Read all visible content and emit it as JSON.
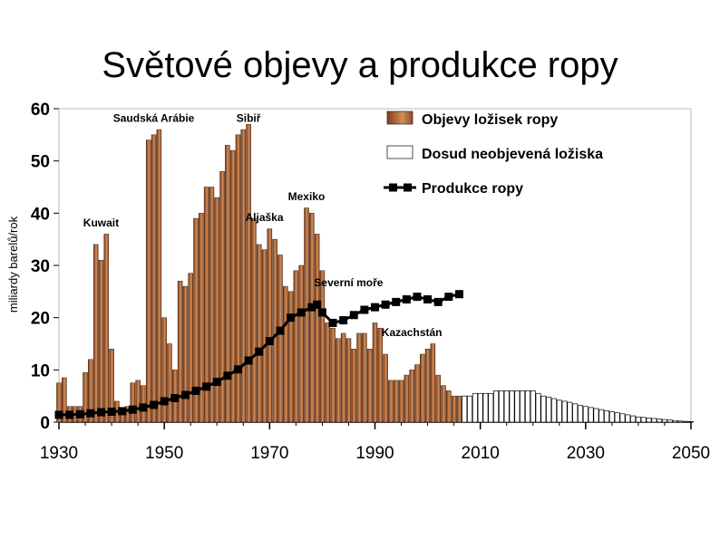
{
  "title": "Světové objevy a produkce ropy",
  "chart_data": {
    "type": "bar",
    "ylabel": "miliardy barelů/rok",
    "xlabel": "",
    "ylim": [
      0,
      60
    ],
    "xlim": [
      1930,
      2050
    ],
    "yticks": [
      0,
      10,
      20,
      30,
      40,
      50,
      60
    ],
    "xticks": [
      1930,
      1950,
      1970,
      1990,
      2010,
      2030,
      2050
    ],
    "grid": false,
    "legend_position": "top-right",
    "legend": [
      {
        "label": "Objevy ložisek ropy",
        "kind": "discoveries"
      },
      {
        "label": "Dosud neobjevená ložiska",
        "kind": "undiscovered"
      },
      {
        "label": "Produkce ropy",
        "kind": "production"
      }
    ],
    "annotations": [
      {
        "text": "Saudská Arábie",
        "x": 1948,
        "y": 57.5
      },
      {
        "text": "Sibiř",
        "x": 1966,
        "y": 57.5
      },
      {
        "text": "Kuwait",
        "x": 1938,
        "y": 37.5
      },
      {
        "text": "Mexiko",
        "x": 1977,
        "y": 42.5
      },
      {
        "text": "Aljaška",
        "x": 1969,
        "y": 38.5
      },
      {
        "text": "Severní moře",
        "x": 1985,
        "y": 26
      },
      {
        "text": "Kazachstán",
        "x": 1997,
        "y": 16.5
      }
    ],
    "series": [
      {
        "name": "Objevy ložisek ropy",
        "x": [
          1930,
          1931,
          1932,
          1933,
          1934,
          1935,
          1936,
          1937,
          1938,
          1939,
          1940,
          1941,
          1942,
          1943,
          1944,
          1945,
          1946,
          1947,
          1948,
          1949,
          1950,
          1951,
          1952,
          1953,
          1954,
          1955,
          1956,
          1957,
          1958,
          1959,
          1960,
          1961,
          1962,
          1963,
          1964,
          1965,
          1966,
          1967,
          1968,
          1969,
          1970,
          1971,
          1972,
          1973,
          1974,
          1975,
          1976,
          1977,
          1978,
          1979,
          1980,
          1981,
          1982,
          1983,
          1984,
          1985,
          1986,
          1987,
          1988,
          1989,
          1990,
          1991,
          1992,
          1993,
          1994,
          1995,
          1996,
          1997,
          1998,
          1999,
          2000,
          2001,
          2002,
          2003,
          2004,
          2005,
          2006
        ],
        "values": [
          7.5,
          8.5,
          3,
          3,
          3,
          9.5,
          12,
          34,
          31,
          36,
          14,
          4,
          2,
          3,
          7.5,
          8,
          7,
          54,
          55,
          56,
          20,
          15,
          10,
          27,
          26,
          28.5,
          39,
          40,
          45,
          45,
          43,
          48,
          53,
          52,
          55,
          56,
          57,
          39,
          34,
          33,
          37,
          35,
          32,
          26,
          25,
          29,
          30,
          41,
          40,
          36,
          29,
          19,
          18,
          16,
          17,
          16,
          14,
          17,
          17,
          14,
          19,
          18,
          13,
          8,
          8,
          8,
          9,
          10,
          11,
          13,
          14,
          15,
          9,
          7,
          6,
          5,
          5
        ]
      },
      {
        "name": "Dosud neobjevená ložiska",
        "x": [
          2007,
          2008,
          2009,
          2010,
          2011,
          2012,
          2013,
          2014,
          2015,
          2016,
          2017,
          2018,
          2019,
          2020,
          2021,
          2022,
          2023,
          2024,
          2025,
          2026,
          2027,
          2028,
          2029,
          2030,
          2031,
          2032,
          2033,
          2034,
          2035,
          2036,
          2037,
          2038,
          2039,
          2040,
          2041,
          2042,
          2043,
          2044,
          2045,
          2046,
          2047,
          2048,
          2049,
          2050
        ],
        "values": [
          5,
          5,
          5.5,
          5.5,
          5.5,
          5.5,
          6,
          6,
          6,
          6,
          6,
          6,
          6,
          6,
          5.5,
          5,
          4.8,
          4.5,
          4.2,
          4,
          3.8,
          3.5,
          3.2,
          3,
          2.8,
          2.6,
          2.4,
          2.2,
          2,
          1.8,
          1.6,
          1.4,
          1.2,
          1,
          0.9,
          0.8,
          0.7,
          0.6,
          0.5,
          0.4,
          0.3,
          0.2,
          0.15,
          0.1
        ]
      },
      {
        "name": "Produkce ropy",
        "x": [
          1930,
          1932,
          1934,
          1936,
          1938,
          1940,
          1942,
          1944,
          1946,
          1948,
          1950,
          1952,
          1954,
          1956,
          1958,
          1960,
          1962,
          1964,
          1966,
          1968,
          1970,
          1972,
          1974,
          1976,
          1978,
          1979,
          1980,
          1982,
          1984,
          1986,
          1988,
          1990,
          1992,
          1994,
          1996,
          1998,
          2000,
          2002,
          2004,
          2006
        ],
        "values": [
          1.4,
          1.4,
          1.5,
          1.7,
          1.9,
          2,
          2.1,
          2.4,
          2.8,
          3.3,
          4,
          4.6,
          5.2,
          6,
          6.8,
          7.7,
          8.9,
          10.1,
          11.8,
          13.5,
          15.5,
          17.5,
          20,
          21,
          22,
          22.5,
          21,
          19,
          19.5,
          20.5,
          21.5,
          22,
          22.5,
          23,
          23.5,
          24,
          23.5,
          23,
          24,
          24.5
        ]
      }
    ]
  }
}
